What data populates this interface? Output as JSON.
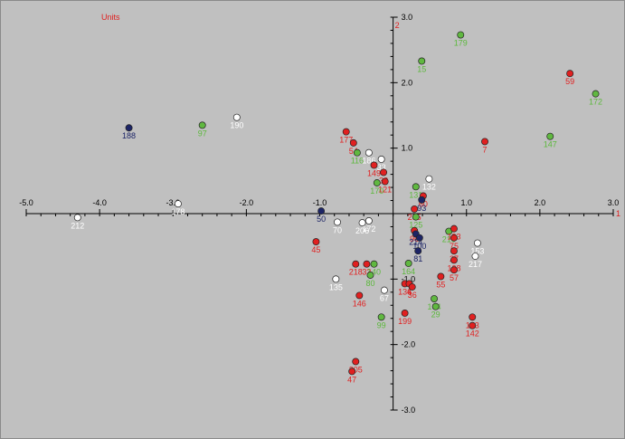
{
  "chart_data": {
    "type": "scatter",
    "title": "Units",
    "axis_labels": {
      "x_end": "1",
      "y_end": "2"
    },
    "xlim": [
      -5.0,
      3.0
    ],
    "ylim": [
      -3.0,
      3.0
    ],
    "x_ticks": [
      "-5.0",
      "-4.0",
      "-3.0",
      "-2.0",
      "-1.0",
      "1.0",
      "2.0",
      "3.0"
    ],
    "y_ticks": [
      "3.0",
      "2.0",
      "1.0",
      "-1.0",
      "-2.0",
      "-3.0"
    ],
    "grid": false,
    "colors": {
      "red": "#e02020",
      "green": "#60b840",
      "white": "#ffffff",
      "navy": "#1c2466",
      "title": "#e02020",
      "label_red": "#e02020",
      "label_green": "#5cb83c",
      "label_white": "#ffffff",
      "label_navy": "#1c2466"
    },
    "points": [
      {
        "label": "179",
        "x": 0.92,
        "y": 2.73,
        "color": "green"
      },
      {
        "label": "15",
        "x": 0.39,
        "y": 2.33,
        "color": "green"
      },
      {
        "label": "59",
        "x": 2.41,
        "y": 2.14,
        "color": "red"
      },
      {
        "label": "172",
        "x": 2.76,
        "y": 1.83,
        "color": "green"
      },
      {
        "label": "188",
        "x": -3.6,
        "y": 1.31,
        "color": "navy"
      },
      {
        "label": "97",
        "x": -2.6,
        "y": 1.35,
        "color": "green"
      },
      {
        "label": "190",
        "x": -2.13,
        "y": 1.47,
        "color": "white"
      },
      {
        "label": "147",
        "x": 2.14,
        "y": 1.18,
        "color": "green"
      },
      {
        "label": "7",
        "x": 1.25,
        "y": 1.1,
        "color": "red"
      },
      {
        "label": "177",
        "x": -0.64,
        "y": 1.25,
        "color": "red"
      },
      {
        "label": "54",
        "x": -0.54,
        "y": 1.08,
        "color": "red"
      },
      {
        "label": "116",
        "x": -0.49,
        "y": 0.93,
        "color": "green"
      },
      {
        "label": "186",
        "x": -0.33,
        "y": 0.93,
        "color": "white"
      },
      {
        "label": "33",
        "x": -0.16,
        "y": 0.83,
        "color": "white"
      },
      {
        "label": "149",
        "x": -0.26,
        "y": 0.74,
        "color": "red"
      },
      {
        "label": "32",
        "x": -0.13,
        "y": 0.63,
        "color": "red"
      },
      {
        "label": "121",
        "x": -0.11,
        "y": 0.49,
        "color": "red"
      },
      {
        "label": "170",
        "x": -0.22,
        "y": 0.47,
        "color": "green"
      },
      {
        "label": "132",
        "x": 0.49,
        "y": 0.53,
        "color": "white"
      },
      {
        "label": "131",
        "x": 0.31,
        "y": 0.41,
        "color": "green"
      },
      {
        "label": "60",
        "x": 0.41,
        "y": 0.27,
        "color": "red"
      },
      {
        "label": "93",
        "x": 0.39,
        "y": 0.21,
        "color": "navy"
      },
      {
        "label": "205",
        "x": 0.29,
        "y": 0.07,
        "color": "red"
      },
      {
        "label": "125",
        "x": 0.31,
        "y": -0.05,
        "color": "green"
      },
      {
        "label": "50",
        "x": -0.98,
        "y": 0.04,
        "color": "navy"
      },
      {
        "label": "178",
        "x": -2.93,
        "y": 0.15,
        "color": "white"
      },
      {
        "label": "212",
        "x": -4.3,
        "y": -0.06,
        "color": "white"
      },
      {
        "label": "70",
        "x": -0.76,
        "y": -0.13,
        "color": "white"
      },
      {
        "label": "206",
        "x": -0.42,
        "y": -0.14,
        "color": "white"
      },
      {
        "label": "172",
        "x": -0.33,
        "y": -0.11,
        "color": "white"
      },
      {
        "label": "96",
        "x": 0.29,
        "y": -0.26,
        "color": "red"
      },
      {
        "label": "214",
        "x": 0.31,
        "y": -0.31,
        "color": "navy"
      },
      {
        "label": "100",
        "x": 0.36,
        "y": -0.37,
        "color": "navy"
      },
      {
        "label": "81",
        "x": 0.34,
        "y": -0.57,
        "color": "navy"
      },
      {
        "label": "210",
        "x": 0.76,
        "y": -0.27,
        "color": "green"
      },
      {
        "label": "193",
        "x": 0.83,
        "y": -0.23,
        "color": "red"
      },
      {
        "label": "75",
        "x": 0.83,
        "y": -0.37,
        "color": "red"
      },
      {
        "label": "27",
        "x": 0.83,
        "y": -0.57,
        "color": "red"
      },
      {
        "label": "128",
        "x": 0.83,
        "y": -0.71,
        "color": "red"
      },
      {
        "label": "57",
        "x": 0.83,
        "y": -0.86,
        "color": "red"
      },
      {
        "label": "55",
        "x": 0.65,
        "y": -0.96,
        "color": "red"
      },
      {
        "label": "153",
        "x": 1.15,
        "y": -0.45,
        "color": "white"
      },
      {
        "label": "217",
        "x": 1.12,
        "y": -0.65,
        "color": "white"
      },
      {
        "label": "45",
        "x": -1.05,
        "y": -0.43,
        "color": "red"
      },
      {
        "label": "164",
        "x": 0.21,
        "y": -0.76,
        "color": "green"
      },
      {
        "label": "218",
        "x": -0.51,
        "y": -0.77,
        "color": "red"
      },
      {
        "label": "33",
        "x": -0.36,
        "y": -0.77,
        "color": "red"
      },
      {
        "label": "140",
        "x": -0.26,
        "y": -0.77,
        "color": "green"
      },
      {
        "label": "80",
        "x": -0.31,
        "y": -0.94,
        "color": "green"
      },
      {
        "label": "135",
        "x": -0.78,
        "y": -1.0,
        "color": "white"
      },
      {
        "label": "136",
        "x": 0.16,
        "y": -1.07,
        "color": "red"
      },
      {
        "label": "4",
        "x": 0.22,
        "y": -1.07,
        "color": "red"
      },
      {
        "label": "36",
        "x": 0.26,
        "y": -1.12,
        "color": "red"
      },
      {
        "label": "67",
        "x": -0.12,
        "y": -1.17,
        "color": "white"
      },
      {
        "label": "146",
        "x": -0.46,
        "y": -1.25,
        "color": "red"
      },
      {
        "label": "104",
        "x": 0.56,
        "y": -1.3,
        "color": "green"
      },
      {
        "label": "29",
        "x": 0.58,
        "y": -1.42,
        "color": "green"
      },
      {
        "label": "199",
        "x": 0.16,
        "y": -1.52,
        "color": "red"
      },
      {
        "label": "103",
        "x": 1.08,
        "y": -1.58,
        "color": "red"
      },
      {
        "label": "142",
        "x": 1.08,
        "y": -1.71,
        "color": "red"
      },
      {
        "label": "99",
        "x": -0.16,
        "y": -1.58,
        "color": "green"
      },
      {
        "label": "205",
        "x": -0.51,
        "y": -2.26,
        "color": "red"
      },
      {
        "label": "47",
        "x": -0.56,
        "y": -2.41,
        "color": "red"
      }
    ]
  }
}
